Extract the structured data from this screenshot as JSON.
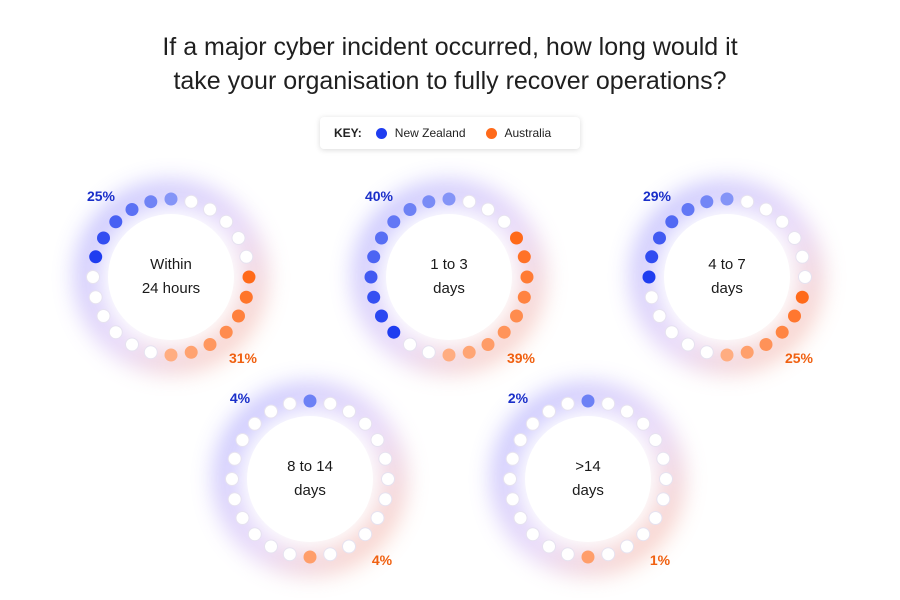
{
  "title_line1": "If a major cyber incident occurred, how long would it",
  "title_line2": "take your organisation to fully recover operations?",
  "key": {
    "title": "KEY:",
    "nz_label": "New Zealand",
    "au_label": "Australia",
    "nz_color": "#1f3df0",
    "au_color": "#ff6a1a"
  },
  "chart_data": [
    {
      "type": "dot-ring",
      "category": [
        "Within",
        "24 hours"
      ],
      "nz": 25,
      "au": 31,
      "nz_label": "25%",
      "au_label": "31%"
    },
    {
      "type": "dot-ring",
      "category": [
        "1 to 3",
        "days"
      ],
      "nz": 40,
      "au": 39,
      "nz_label": "40%",
      "au_label": "39%"
    },
    {
      "type": "dot-ring",
      "category": [
        "4 to 7",
        "days"
      ],
      "nz": 29,
      "au": 25,
      "nz_label": "29%",
      "au_label": "25%"
    },
    {
      "type": "dot-ring",
      "category": [
        "8 to 14",
        "days"
      ],
      "nz": 4,
      "au": 4,
      "nz_label": "4%",
      "au_label": "4%"
    },
    {
      "type": "dot-ring",
      "category": [
        ">14",
        "days"
      ],
      "nz": 2,
      "au": 1,
      "nz_label": "2%",
      "au_label": "1%"
    }
  ]
}
